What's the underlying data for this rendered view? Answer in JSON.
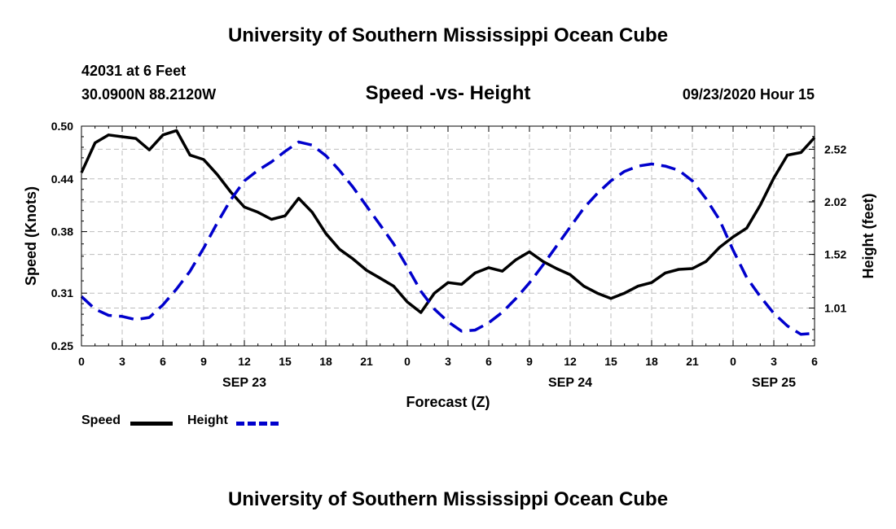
{
  "header": {
    "title": "University of Southern Mississippi Ocean Cube",
    "station": "42031 at 6 Feet",
    "coordinates": "30.0900N 88.2120W",
    "timestamp": "09/23/2020 Hour 15"
  },
  "footer": {
    "title": "University of Southern Mississippi Ocean Cube"
  },
  "chart_data": {
    "type": "line",
    "title": "Speed -vs- Height",
    "xlabel": "Forecast (Z)",
    "ylabel": "Speed (Knots)",
    "y2label": "Height (feet)",
    "x_tick_labels": [
      "0",
      "3",
      "6",
      "9",
      "12",
      "15",
      "18",
      "21",
      "0",
      "3",
      "6",
      "9",
      "12",
      "15",
      "18",
      "21",
      "0",
      "3",
      "6"
    ],
    "date_labels": [
      {
        "hour_index": 12,
        "label": "SEP 23"
      },
      {
        "hour_index": 36,
        "label": "SEP 24"
      },
      {
        "hour_index": 51,
        "label": "SEP 25"
      }
    ],
    "xlim": [
      0,
      54
    ],
    "ylim": [
      0.25,
      0.5
    ],
    "y_ticks": [
      "0.25",
      "0.31",
      "0.38",
      "0.44",
      "0.50"
    ],
    "y2lim": [
      0.65,
      2.74
    ],
    "y2_ticks": [
      "1.01",
      "1.52",
      "2.02",
      "2.52"
    ],
    "grid": true,
    "legend": "bottom-left",
    "series": [
      {
        "name": "Speed",
        "axis": "left",
        "color": "#000000",
        "style": "solid",
        "x": [
          0,
          1,
          2,
          3,
          4,
          5,
          6,
          7,
          8,
          9,
          10,
          11,
          12,
          13,
          14,
          15,
          16,
          17,
          18,
          19,
          20,
          21,
          22,
          23,
          24,
          25,
          26,
          27,
          28,
          29,
          30,
          31,
          32,
          33,
          34,
          35,
          36,
          37,
          38,
          39,
          40,
          41,
          42,
          43,
          44,
          45,
          46,
          47,
          48,
          49,
          50,
          51,
          52,
          53,
          54
        ],
        "values": [
          0.447,
          0.481,
          0.49,
          0.488,
          0.486,
          0.473,
          0.49,
          0.495,
          0.467,
          0.462,
          0.445,
          0.425,
          0.408,
          0.402,
          0.394,
          0.398,
          0.418,
          0.402,
          0.378,
          0.36,
          0.349,
          0.336,
          0.327,
          0.318,
          0.3,
          0.288,
          0.31,
          0.322,
          0.32,
          0.333,
          0.339,
          0.335,
          0.348,
          0.357,
          0.346,
          0.338,
          0.331,
          0.318,
          0.31,
          0.304,
          0.31,
          0.318,
          0.322,
          0.333,
          0.337,
          0.338,
          0.346,
          0.362,
          0.374,
          0.384,
          0.41,
          0.441,
          0.467,
          0.47,
          0.487
        ]
      },
      {
        "name": "Height",
        "axis": "right",
        "color": "#0000cc",
        "style": "dashed",
        "x": [
          0,
          1,
          2,
          3,
          4,
          5,
          6,
          7,
          8,
          9,
          10,
          11,
          12,
          13,
          14,
          15,
          16,
          17,
          18,
          19,
          20,
          21,
          22,
          23,
          24,
          25,
          26,
          27,
          28,
          29,
          30,
          31,
          32,
          33,
          34,
          35,
          36,
          37,
          38,
          39,
          40,
          41,
          42,
          43,
          44,
          45,
          46,
          47,
          48,
          49,
          50,
          51,
          52,
          53,
          54
        ],
        "values": [
          1.12,
          1.0,
          0.94,
          0.93,
          0.9,
          0.92,
          1.04,
          1.19,
          1.36,
          1.58,
          1.82,
          2.04,
          2.22,
          2.32,
          2.4,
          2.5,
          2.59,
          2.56,
          2.46,
          2.32,
          2.16,
          1.98,
          1.8,
          1.62,
          1.4,
          1.17,
          1.0,
          0.88,
          0.79,
          0.8,
          0.87,
          0.97,
          1.1,
          1.25,
          1.42,
          1.6,
          1.78,
          1.96,
          2.1,
          2.22,
          2.31,
          2.36,
          2.38,
          2.36,
          2.32,
          2.22,
          2.05,
          1.85,
          1.56,
          1.3,
          1.12,
          0.96,
          0.84,
          0.76,
          0.77
        ]
      }
    ]
  }
}
